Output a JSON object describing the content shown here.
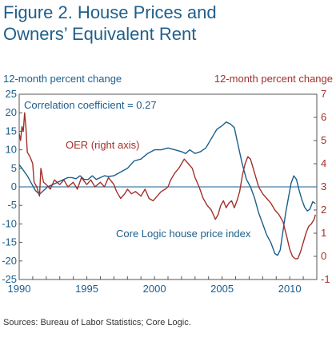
{
  "title": "Figure 2. House Prices and Owners’ Equivalent Rent",
  "source": "Sources: Bureau of Labor Statistics; Core Logic.",
  "colors": {
    "title": "#1f5f8b",
    "hpi": "#1b5e8c",
    "oer": "#a2302b",
    "axis": "#333333",
    "zero": "#1b5e8c"
  },
  "chart_data": {
    "type": "line",
    "left_axis_label": "12-month percent change",
    "right_axis_label": "12-month percent change",
    "annotations": {
      "correlation": "Correlation coefficient = 0.27",
      "oer": "OER (right axis)",
      "hpi": "Core Logic house price index"
    },
    "xlim": [
      1990,
      2012
    ],
    "ylim_left": [
      -25,
      25
    ],
    "ylim_right": [
      -1,
      7
    ],
    "x_ticks": [
      "1990",
      "1995",
      "2000",
      "2005",
      "2010"
    ],
    "y_ticks_left": [
      "25",
      "20",
      "15",
      "10",
      "5",
      "0",
      "-5",
      "-10",
      "-15",
      "-20",
      "-25"
    ],
    "y_ticks_right": [
      "7",
      "6",
      "5",
      "4",
      "3",
      "2",
      "1",
      "0",
      "-1"
    ],
    "grid": false,
    "series": [
      {
        "name": "Core Logic house price index",
        "axis": "left",
        "points": [
          [
            1990.0,
            6.0
          ],
          [
            1990.3,
            4.5
          ],
          [
            1990.6,
            3.0
          ],
          [
            1990.9,
            1.0
          ],
          [
            1991.2,
            -1.0
          ],
          [
            1991.5,
            -2.0
          ],
          [
            1991.8,
            -1.0
          ],
          [
            1992.1,
            0.0
          ],
          [
            1992.4,
            0.5
          ],
          [
            1992.7,
            1.0
          ],
          [
            1993.0,
            1.5
          ],
          [
            1993.3,
            2.0
          ],
          [
            1993.6,
            2.5
          ],
          [
            1993.9,
            2.5
          ],
          [
            1994.2,
            2.2
          ],
          [
            1994.5,
            3.0
          ],
          [
            1994.8,
            2.0
          ],
          [
            1995.1,
            2.0
          ],
          [
            1995.4,
            3.0
          ],
          [
            1995.7,
            2.0
          ],
          [
            1996.0,
            2.5
          ],
          [
            1996.3,
            3.0
          ],
          [
            1996.6,
            2.8
          ],
          [
            1997.0,
            3.0
          ],
          [
            1997.5,
            4.0
          ],
          [
            1998.0,
            5.0
          ],
          [
            1998.5,
            7.0
          ],
          [
            1999.0,
            7.5
          ],
          [
            1999.5,
            9.0
          ],
          [
            2000.0,
            10.0
          ],
          [
            2000.5,
            10.0
          ],
          [
            2001.0,
            10.5
          ],
          [
            2001.5,
            10.0
          ],
          [
            2002.0,
            9.5
          ],
          [
            2002.3,
            9.0
          ],
          [
            2002.6,
            10.0
          ],
          [
            2003.0,
            9.0
          ],
          [
            2003.4,
            9.5
          ],
          [
            2003.8,
            10.5
          ],
          [
            2004.2,
            13.0
          ],
          [
            2004.6,
            15.5
          ],
          [
            2005.0,
            16.5
          ],
          [
            2005.3,
            17.5
          ],
          [
            2005.6,
            17.0
          ],
          [
            2005.9,
            16.0
          ],
          [
            2006.2,
            11.0
          ],
          [
            2006.5,
            6.0
          ],
          [
            2006.8,
            2.0
          ],
          [
            2007.1,
            0.0
          ],
          [
            2007.4,
            -3.0
          ],
          [
            2007.7,
            -7.0
          ],
          [
            2008.0,
            -10.0
          ],
          [
            2008.3,
            -13.0
          ],
          [
            2008.6,
            -15.0
          ],
          [
            2008.9,
            -18.0
          ],
          [
            2009.1,
            -18.5
          ],
          [
            2009.3,
            -17.0
          ],
          [
            2009.5,
            -12.0
          ],
          [
            2009.7,
            -7.0
          ],
          [
            2009.9,
            -3.0
          ],
          [
            2010.1,
            1.0
          ],
          [
            2010.3,
            3.0
          ],
          [
            2010.5,
            2.0
          ],
          [
            2010.7,
            -1.0
          ],
          [
            2010.9,
            -3.5
          ],
          [
            2011.1,
            -5.5
          ],
          [
            2011.3,
            -6.5
          ],
          [
            2011.5,
            -6.0
          ],
          [
            2011.7,
            -4.0
          ],
          [
            2011.9,
            -4.5
          ]
        ]
      },
      {
        "name": "OER (right axis)",
        "axis": "right",
        "points": [
          [
            1990.0,
            5.3
          ],
          [
            1990.1,
            5.0
          ],
          [
            1990.2,
            5.6
          ],
          [
            1990.3,
            5.4
          ],
          [
            1990.4,
            6.2
          ],
          [
            1990.5,
            5.5
          ],
          [
            1990.6,
            4.5
          ],
          [
            1990.8,
            4.3
          ],
          [
            1991.0,
            4.0
          ],
          [
            1991.1,
            3.2
          ],
          [
            1991.3,
            3.0
          ],
          [
            1991.5,
            2.6
          ],
          [
            1991.6,
            3.8
          ],
          [
            1991.8,
            3.2
          ],
          [
            1992.0,
            3.1
          ],
          [
            1992.3,
            2.9
          ],
          [
            1992.6,
            3.3
          ],
          [
            1993.0,
            3.1
          ],
          [
            1993.3,
            3.3
          ],
          [
            1993.6,
            3.0
          ],
          [
            1994.0,
            3.2
          ],
          [
            1994.3,
            2.9
          ],
          [
            1994.6,
            3.4
          ],
          [
            1995.0,
            3.1
          ],
          [
            1995.3,
            3.3
          ],
          [
            1995.6,
            3.0
          ],
          [
            1996.0,
            3.2
          ],
          [
            1996.3,
            3.0
          ],
          [
            1996.6,
            3.4
          ],
          [
            1997.0,
            3.1
          ],
          [
            1997.2,
            2.8
          ],
          [
            1997.5,
            2.5
          ],
          [
            1997.8,
            2.7
          ],
          [
            1998.0,
            2.9
          ],
          [
            1998.3,
            2.7
          ],
          [
            1998.6,
            2.8
          ],
          [
            1999.0,
            2.6
          ],
          [
            1999.3,
            2.9
          ],
          [
            1999.6,
            2.5
          ],
          [
            1999.9,
            2.4
          ],
          [
            2000.2,
            2.6
          ],
          [
            2000.5,
            2.8
          ],
          [
            2000.8,
            2.9
          ],
          [
            2001.0,
            3.0
          ],
          [
            2001.2,
            3.3
          ],
          [
            2001.5,
            3.6
          ],
          [
            2001.8,
            3.8
          ],
          [
            2002.0,
            4.0
          ],
          [
            2002.2,
            4.2
          ],
          [
            2002.5,
            4.0
          ],
          [
            2002.8,
            3.8
          ],
          [
            2003.0,
            3.4
          ],
          [
            2003.3,
            3.0
          ],
          [
            2003.6,
            2.5
          ],
          [
            2003.9,
            2.2
          ],
          [
            2004.2,
            2.0
          ],
          [
            2004.5,
            1.6
          ],
          [
            2004.7,
            1.8
          ],
          [
            2004.9,
            2.2
          ],
          [
            2005.1,
            2.4
          ],
          [
            2005.3,
            2.1
          ],
          [
            2005.5,
            2.3
          ],
          [
            2005.7,
            2.4
          ],
          [
            2005.9,
            2.1
          ],
          [
            2006.1,
            2.4
          ],
          [
            2006.3,
            2.8
          ],
          [
            2006.5,
            3.5
          ],
          [
            2006.7,
            4.0
          ],
          [
            2006.9,
            4.3
          ],
          [
            2007.1,
            4.2
          ],
          [
            2007.3,
            3.8
          ],
          [
            2007.5,
            3.4
          ],
          [
            2007.7,
            3.0
          ],
          [
            2008.0,
            2.7
          ],
          [
            2008.3,
            2.5
          ],
          [
            2008.6,
            2.3
          ],
          [
            2008.9,
            2.0
          ],
          [
            2009.2,
            1.8
          ],
          [
            2009.5,
            1.5
          ],
          [
            2009.8,
            0.8
          ],
          [
            2010.0,
            0.3
          ],
          [
            2010.2,
            0.0
          ],
          [
            2010.4,
            -0.1
          ],
          [
            2010.6,
            -0.1
          ],
          [
            2010.8,
            0.2
          ],
          [
            2011.0,
            0.6
          ],
          [
            2011.2,
            1.0
          ],
          [
            2011.4,
            1.3
          ],
          [
            2011.6,
            1.4
          ],
          [
            2011.8,
            1.6
          ],
          [
            2011.9,
            1.8
          ]
        ]
      }
    ]
  }
}
